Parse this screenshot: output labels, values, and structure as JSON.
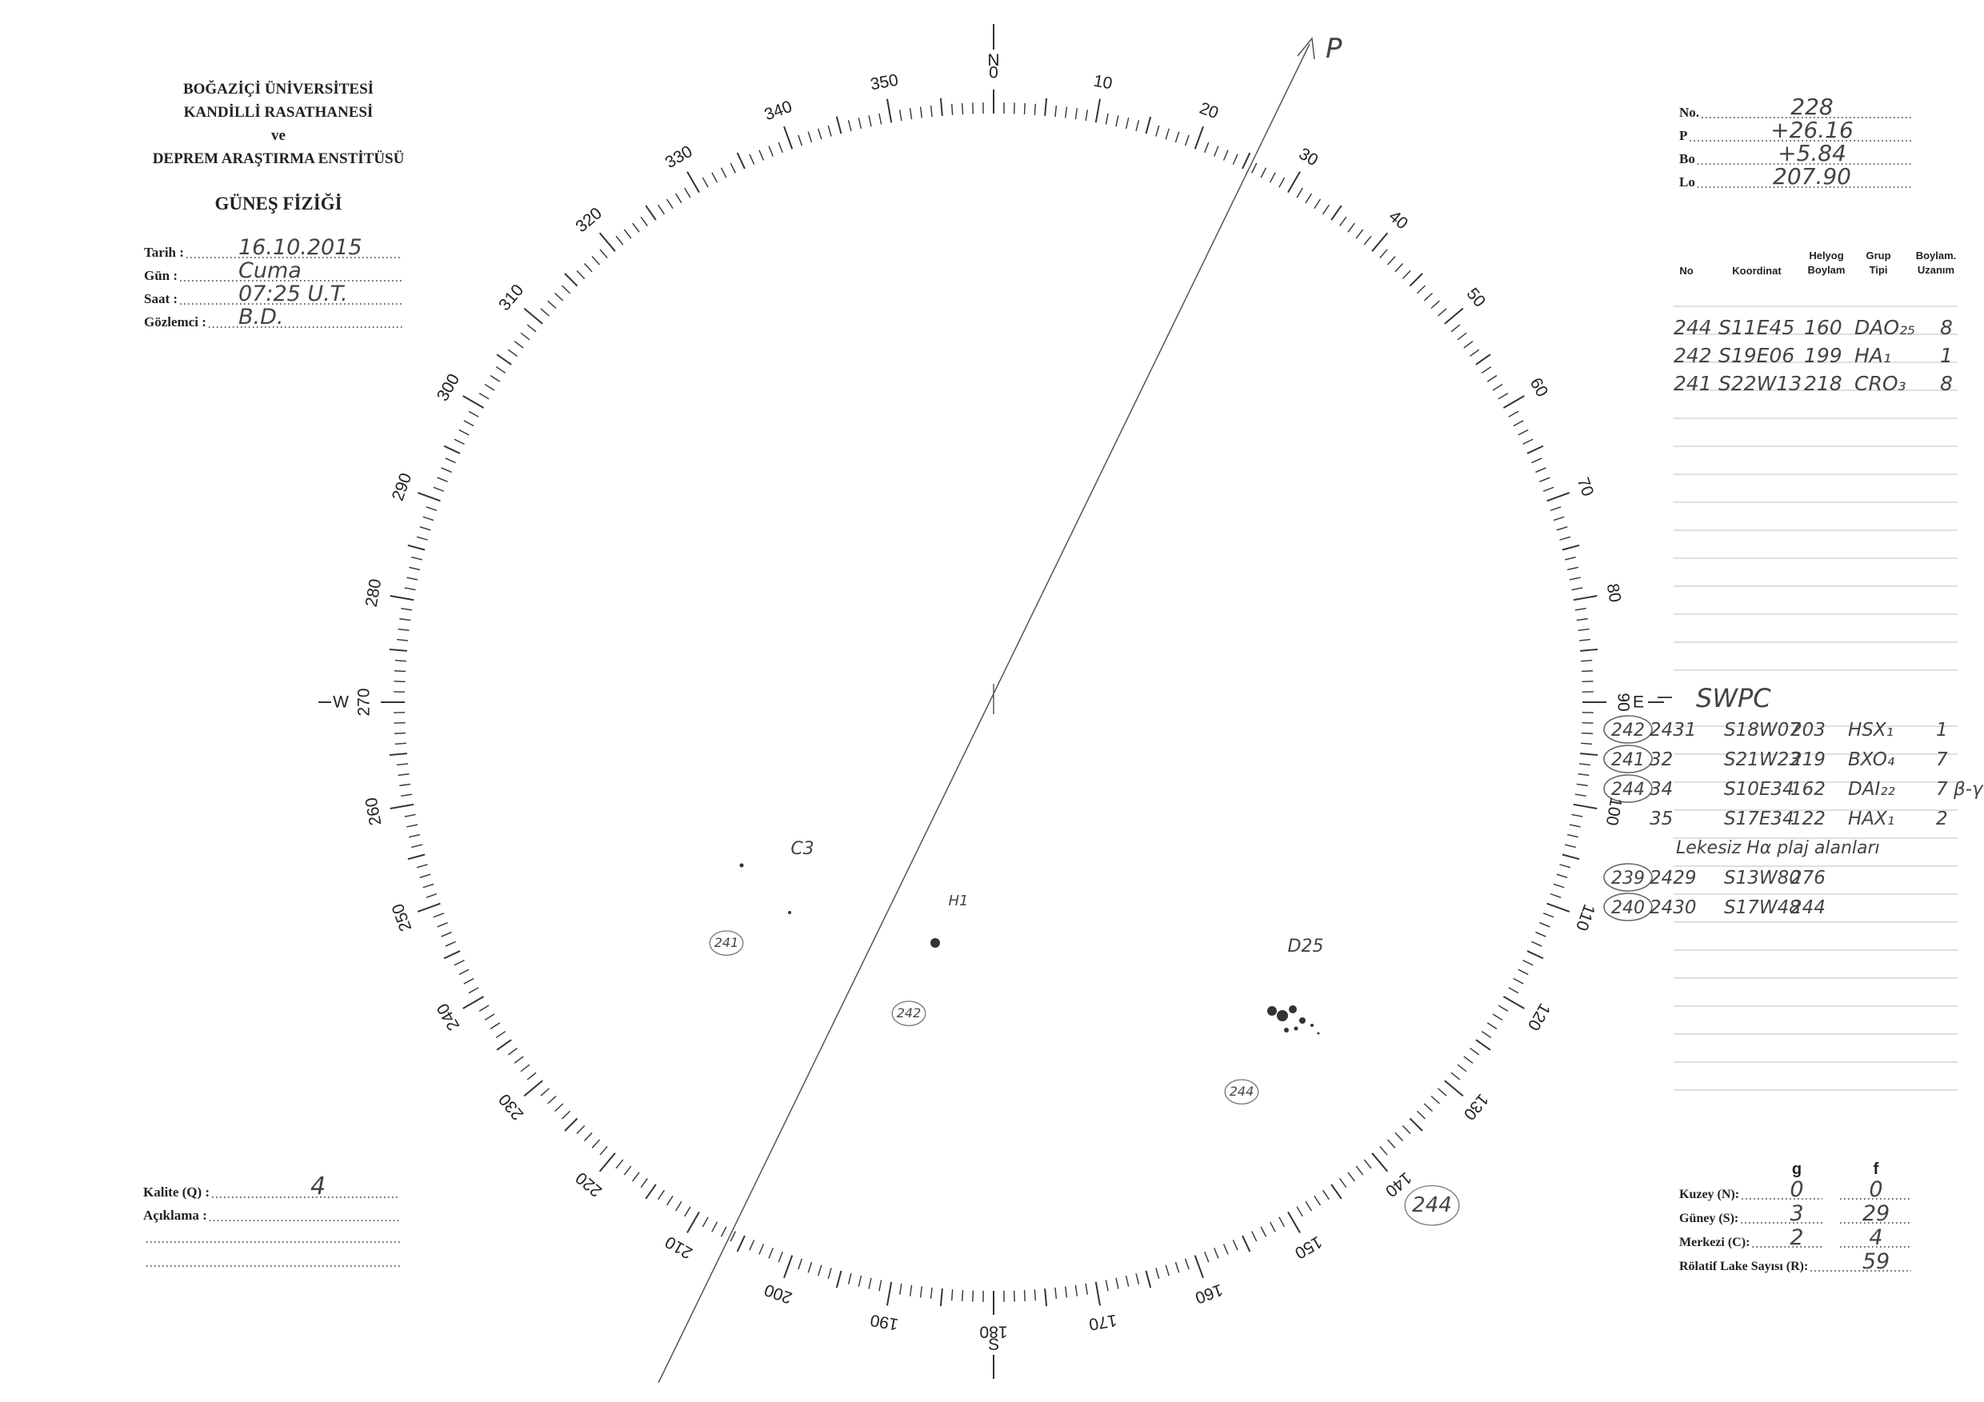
{
  "header": {
    "institution": [
      "BOĞAZİÇİ ÜNİVERSİTESİ",
      "KANDİLLİ RASATHANESİ",
      "ve",
      "DEPREM ARAŞTIRMA ENSTİTÜSÜ"
    ],
    "title": "GÜNEŞ FİZİĞİ"
  },
  "observation": [
    {
      "label": "Tarih :",
      "value": "16.10.2015"
    },
    {
      "label": "Gün :",
      "value": "Cuma"
    },
    {
      "label": "Saat :",
      "value": "07:25 U.T."
    },
    {
      "label": "Gözlemci :",
      "value": "B.D."
    }
  ],
  "parameters": [
    {
      "label": "No.",
      "value": "228"
    },
    {
      "label": "P",
      "value": "+26.16"
    },
    {
      "label": "Bo",
      "value": "+5.84"
    },
    {
      "label": "Lo",
      "value": "207.90"
    }
  ],
  "groups_table": {
    "columns": [
      "No",
      "Koordinat",
      "Helyog Boylam",
      "Grup Tipi",
      "Boylam. Uzanım"
    ],
    "rows": [
      [
        "244",
        "S11E45",
        "160",
        "DAO₂₅",
        "8"
      ],
      [
        "242",
        "S19E06",
        "199",
        "HA₁",
        "1"
      ],
      [
        "241",
        "S22W13",
        "218",
        "CRO₃",
        "8"
      ]
    ]
  },
  "swpc": {
    "title": "SWPC",
    "rows": [
      {
        "circle": "242",
        "cells": [
          "2431",
          "S18W07",
          "203",
          "HSX₁",
          "1"
        ]
      },
      {
        "circle": "241",
        "cells": [
          "32",
          "S21W23",
          "219",
          "BXO₄",
          "7"
        ]
      },
      {
        "circle": "244",
        "cells": [
          "34",
          "S10E34",
          "162",
          "DAI₂₂",
          "7 β-γ"
        ]
      },
      {
        "cells": [
          "35",
          "S17E34",
          "122",
          "HAX₁",
          "2"
        ]
      },
      {
        "circle": "239",
        "cells": [
          "2429",
          "S13W80",
          "276"
        ]
      },
      {
        "circle": "240",
        "cells": [
          "2430",
          "S17W48",
          "244"
        ]
      }
    ],
    "note": "Lekesiz Hα plaj alanları"
  },
  "quality": {
    "label": "Kalite (Q) :",
    "value": "4"
  },
  "comment": {
    "label": "Açıklama :"
  },
  "counts": {
    "columns": [
      "g",
      "f"
    ],
    "rows": [
      {
        "label": "Kuzey (N):",
        "g": "0",
        "f": "0"
      },
      {
        "label": "Güney (S):",
        "g": "3",
        "f": "29"
      },
      {
        "label": "Merkezi (C):",
        "g": "2",
        "f": "4"
      }
    ],
    "relative": {
      "label": "Rölatif Lake Sayısı (R):",
      "value": "59"
    }
  },
  "disk": {
    "dial_labels": [
      0,
      10,
      20,
      30,
      40,
      50,
      60,
      70,
      80,
      90,
      100,
      110,
      120,
      130,
      140,
      150,
      160,
      170,
      180,
      190,
      200,
      210,
      220,
      230,
      240,
      250,
      260,
      270,
      280,
      290,
      300,
      310,
      320,
      330,
      340,
      350
    ],
    "cardinals": {
      "north": "N",
      "south": "S",
      "east": "E",
      "west": "W"
    },
    "p_label": "P",
    "sketch_labels": [
      "C3",
      "H1",
      "D25",
      "241",
      "242",
      "244",
      "244"
    ]
  }
}
